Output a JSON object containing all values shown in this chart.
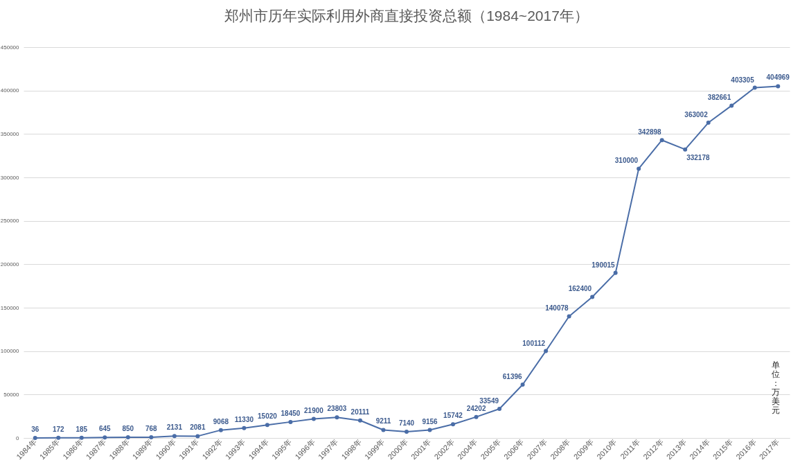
{
  "chart_data": {
    "type": "line",
    "title": "郑州市历年实际利用外商直接投资总额（1984~2017年）",
    "categories": [
      "1984年",
      "1985年",
      "1986年",
      "1987年",
      "1988年",
      "1989年",
      "1990年",
      "1991年",
      "1992年",
      "1993年",
      "1994年",
      "1995年",
      "1996年",
      "1997年",
      "1998年",
      "1999年",
      "2000年",
      "2001年",
      "2002年",
      "2004年",
      "2005年",
      "2006年",
      "2007年",
      "2008年",
      "2009年",
      "2010年",
      "2011年",
      "2012年",
      "2013年",
      "2014年",
      "2015年",
      "2016年",
      "2017年"
    ],
    "values": [
      36,
      172,
      185,
      645,
      850,
      768,
      2131,
      2081,
      9068,
      11330,
      15020,
      18450,
      21900,
      23803,
      20111,
      9211,
      7140,
      9156,
      15742,
      24202,
      33549,
      61396,
      100112,
      140078,
      162400,
      190015,
      310000,
      342898,
      332178,
      363002,
      382661,
      403305,
      404969
    ],
    "color": "#4a6da7",
    "ylim": [
      0,
      450000
    ],
    "yticks": [
      0,
      50000,
      100000,
      150000,
      200000,
      250000,
      300000,
      350000,
      400000,
      450000
    ],
    "grid": "y",
    "marker": "circle",
    "line_style": "solid",
    "data_labels": true,
    "annotations": [
      "单位：万美元"
    ]
  }
}
